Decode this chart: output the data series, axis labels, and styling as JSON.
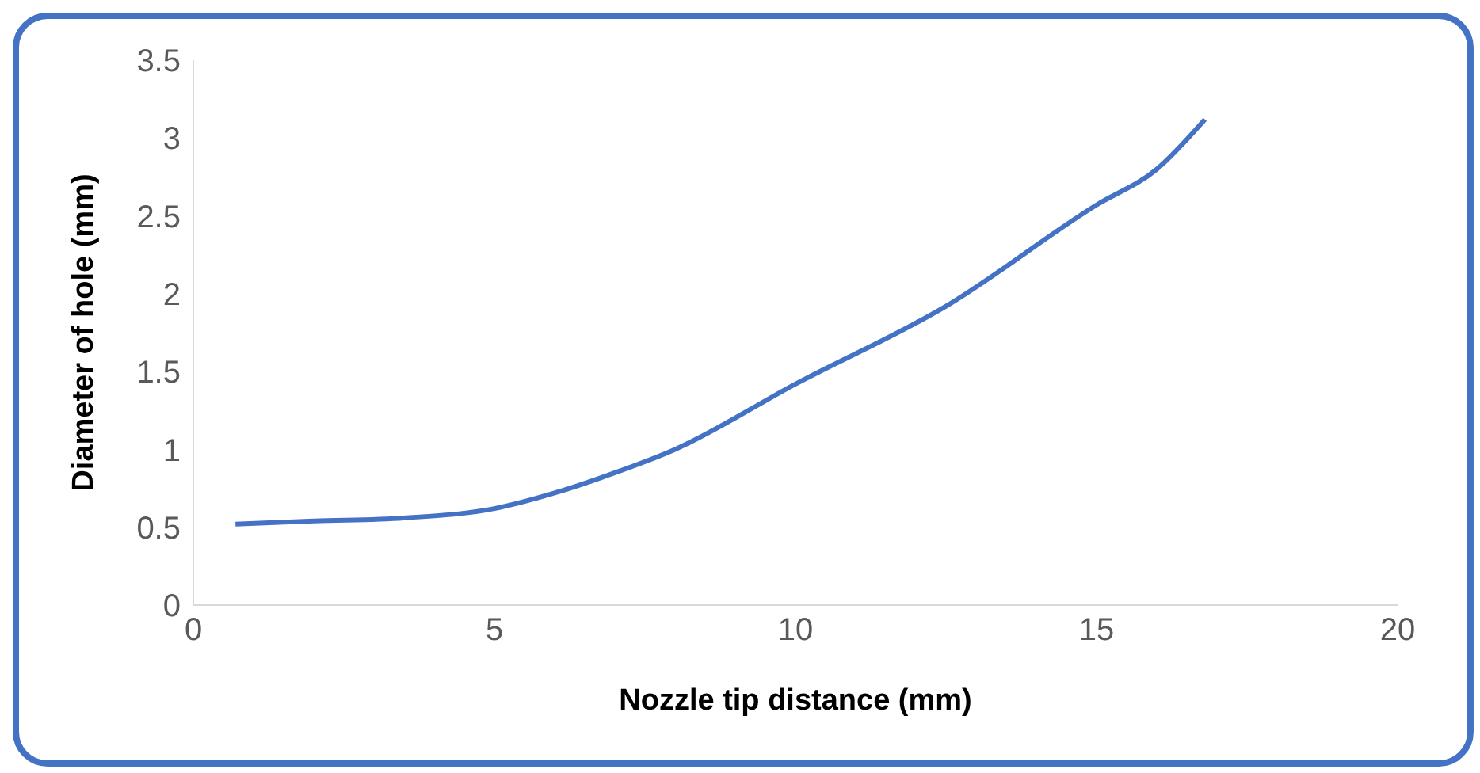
{
  "chart_data": {
    "type": "line",
    "xlabel": "Nozzle tip distance (mm)",
    "ylabel": "Diameter of hole (mm)",
    "x": [
      0.7,
      2,
      3.5,
      5,
      6,
      7,
      8,
      10,
      12.5,
      15,
      16,
      16.8
    ],
    "series": [
      {
        "color": "#4472c4",
        "values": [
          0.52,
          0.54,
          0.56,
          0.62,
          0.72,
          0.85,
          1.0,
          1.42,
          1.92,
          2.57,
          2.8,
          3.12
        ]
      }
    ],
    "xlim": [
      0,
      20
    ],
    "xticks": [
      0,
      5,
      10,
      15,
      20
    ],
    "ylim": [
      0,
      3.5
    ],
    "yticks": [
      0,
      0.5,
      1,
      1.5,
      2,
      2.5,
      3,
      3.5
    ],
    "grid": false,
    "legend": false,
    "marker": "none",
    "line_style": "solid"
  }
}
